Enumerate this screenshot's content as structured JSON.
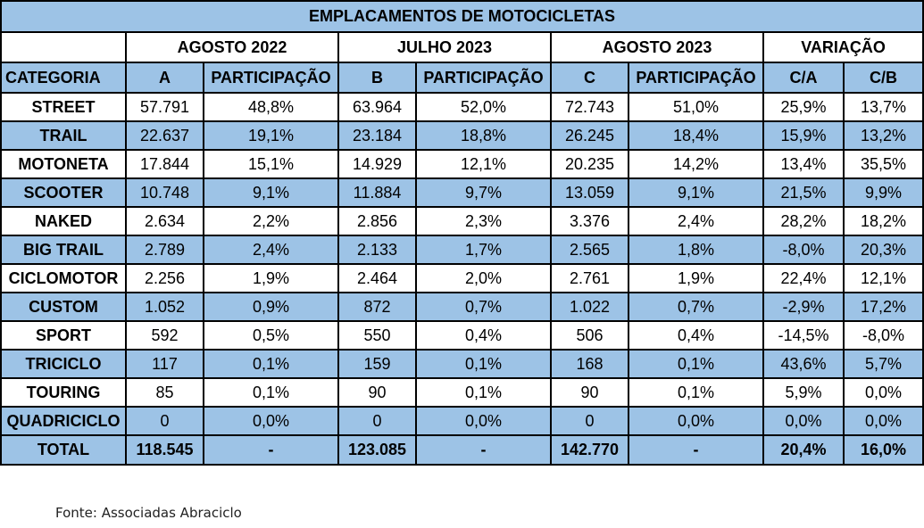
{
  "title": "EMPLACAMENTOS DE MOTOCICLETAS",
  "periods": [
    "AGOSTO 2022",
    "JULHO 2023",
    "AGOSTO 2023",
    "VARIAÇÃO"
  ],
  "subheaders": [
    "CATEGORIA",
    "A",
    "PARTICIPAÇÃO",
    "B",
    "PARTICIPAÇÃO",
    "C",
    "PARTICIPAÇÃO",
    "C/A",
    "C/B"
  ],
  "rows": [
    [
      "STREET",
      "57.791",
      "48,8%",
      "63.964",
      "52,0%",
      "72.743",
      "51,0%",
      "25,9%",
      "13,7%"
    ],
    [
      "TRAIL",
      "22.637",
      "19,1%",
      "23.184",
      "18,8%",
      "26.245",
      "18,4%",
      "15,9%",
      "13,2%"
    ],
    [
      "MOTONETA",
      "17.844",
      "15,1%",
      "14.929",
      "12,1%",
      "20.235",
      "14,2%",
      "13,4%",
      "35,5%"
    ],
    [
      "SCOOTER",
      "10.748",
      "9,1%",
      "11.884",
      "9,7%",
      "13.059",
      "9,1%",
      "21,5%",
      "9,9%"
    ],
    [
      "NAKED",
      "2.634",
      "2,2%",
      "2.856",
      "2,3%",
      "3.376",
      "2,4%",
      "28,2%",
      "18,2%"
    ],
    [
      "BIG TRAIL",
      "2.789",
      "2,4%",
      "2.133",
      "1,7%",
      "2.565",
      "1,8%",
      "-8,0%",
      "20,3%"
    ],
    [
      "CICLOMOTOR",
      "2.256",
      "1,9%",
      "2.464",
      "2,0%",
      "2.761",
      "1,9%",
      "22,4%",
      "12,1%"
    ],
    [
      "CUSTOM",
      "1.052",
      "0,9%",
      "872",
      "0,7%",
      "1.022",
      "0,7%",
      "-2,9%",
      "17,2%"
    ],
    [
      "SPORT",
      "592",
      "0,5%",
      "550",
      "0,4%",
      "506",
      "0,4%",
      "-14,5%",
      "-8,0%"
    ],
    [
      "TRICICLO",
      "117",
      "0,1%",
      "159",
      "0,1%",
      "168",
      "0,1%",
      "43,6%",
      "5,7%"
    ],
    [
      "TOURING",
      "85",
      "0,1%",
      "90",
      "0,1%",
      "90",
      "0,1%",
      "5,9%",
      "0,0%"
    ],
    [
      "QUADRICICLO",
      "0",
      "0,0%",
      "0",
      "0,0%",
      "0",
      "0,0%",
      "0,0%",
      "0,0%"
    ]
  ],
  "total": [
    "TOTAL",
    "118.545",
    "-",
    "123.085",
    "-",
    "142.770",
    "-",
    "20,4%",
    "16,0%"
  ],
  "source": "Fonte: Associadas Abraciclo",
  "colors": {
    "header_blue": "#9dc3e6",
    "border": "#000000"
  }
}
